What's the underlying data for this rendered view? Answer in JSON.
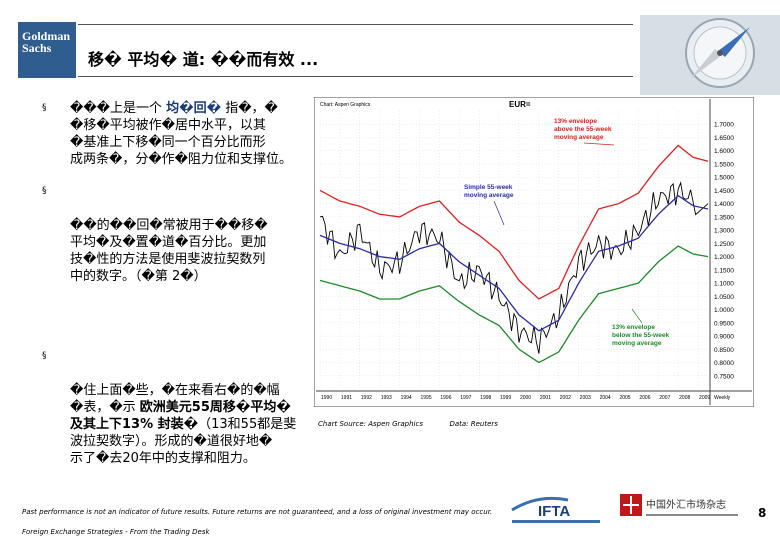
{
  "header": {
    "logo_text_line1": "Goldman",
    "logo_text_line2": "Sachs",
    "title": "移� 平均� 道: ��而有效 ..."
  },
  "bullets": [
    {
      "text_before": "���上是一个 ",
      "highlight": "均�回�",
      "text_after": " 指�，�\n�移�平均被作�居中水平，以其\n�基准上下移�同一个百分比而形\n成两条�，分�作�阻力位和支撑位。"
    },
    {
      "text": "��的��回�常被用于��移�\n平均�及�置�道�百分比。更加\n技�性的方法是使用斐波拉契数列\n中的数字。（�第 2�）"
    },
    {
      "text_before": "�住上面�些，�在来看右�的�幅\n�表，�示 ",
      "highlight": "欧洲美元55周移�平均�\n及其上下13% 封装�",
      "text_after": "（13和55都是斐\n波拉契数字）。形成的�道很好地�\n示了�去20年中的支撑和阻力。"
    }
  ],
  "chart_data": {
    "type": "line",
    "title": "EUR=",
    "header_note": "Chart: Aspen Graphics",
    "x": [
      1990,
      1991,
      1992,
      1993,
      1994,
      1995,
      1996,
      1997,
      1998,
      1999,
      2000,
      2001,
      2002,
      2003,
      2004,
      2005,
      2006,
      2007,
      2008,
      2009
    ],
    "xtick_labels": [
      "1990",
      "1991",
      "1992",
      "1993",
      "1994",
      "1995",
      "1996",
      "1997",
      "1998",
      "1999",
      "2000",
      "2001",
      "2002",
      "2003",
      "2004",
      "2005",
      "2006",
      "2007",
      "2008",
      "2009"
    ],
    "x_unit": "Weekly",
    "ylim": [
      0.7,
      1.75
    ],
    "yticks": [
      "1.7000",
      "1.6500",
      "1.6000",
      "1.5500",
      "1.5000",
      "1.4500",
      "1.4000",
      "1.3500",
      "1.3000",
      "1.2500",
      "1.2000",
      "1.1500",
      "1.1000",
      "1.0500",
      "1.0000",
      "0.9500",
      "0.9000",
      "0.8500",
      "0.8000",
      "0.7500"
    ],
    "series": [
      {
        "name": "EUR= weekly price",
        "color": "#000000",
        "values": [
          1.35,
          1.2,
          1.3,
          1.15,
          1.18,
          1.3,
          1.27,
          1.1,
          1.15,
          1.05,
          0.92,
          0.88,
          0.98,
          1.18,
          1.25,
          1.22,
          1.3,
          1.42,
          1.45,
          1.4
        ]
      },
      {
        "name": "Simple 55-week moving average",
        "color": "#2a2aa8",
        "values": [
          1.28,
          1.25,
          1.23,
          1.2,
          1.19,
          1.23,
          1.25,
          1.18,
          1.13,
          1.08,
          0.98,
          0.92,
          0.96,
          1.1,
          1.22,
          1.24,
          1.27,
          1.36,
          1.43,
          1.38
        ]
      },
      {
        "name": "13% envelope above the 55-week moving average",
        "color": "#e02020",
        "values": [
          1.45,
          1.41,
          1.39,
          1.36,
          1.35,
          1.39,
          1.41,
          1.33,
          1.28,
          1.22,
          1.11,
          1.04,
          1.08,
          1.24,
          1.38,
          1.4,
          1.44,
          1.54,
          1.62,
          1.56
        ]
      },
      {
        "name": "13% envelope below the 55-week moving average",
        "color": "#1f8a2a",
        "values": [
          1.11,
          1.09,
          1.07,
          1.04,
          1.04,
          1.07,
          1.09,
          1.03,
          0.98,
          0.94,
          0.85,
          0.8,
          0.84,
          0.96,
          1.06,
          1.08,
          1.1,
          1.18,
          1.24,
          1.2
        ]
      }
    ],
    "annotations": [
      "13% envelope\nabove the 55-week\nmoving average",
      "Simple 55-week\nmoving average",
      "13% envelope\nbelow the 55-week\nmoving average"
    ]
  },
  "chart_source": {
    "left": "Chart Source: Aspen Graphics",
    "right": "Data: Reuters"
  },
  "footer": {
    "disclaimer": "Past performance is not an indicator of future results. Future returns are not guaranteed, and a loss of original investment may occur.",
    "book": "Foreign Exchange Strategies - From the Trading Desk",
    "page_number": "8",
    "ifta_label": "IFTA",
    "cfm_label": "中国外汇市场杂志"
  },
  "colors": {
    "logo_bg": "#2f5d8f",
    "upper_envelope": "#e02020",
    "lower_envelope": "#1f8a2a",
    "moving_average": "#2a2aa8"
  }
}
